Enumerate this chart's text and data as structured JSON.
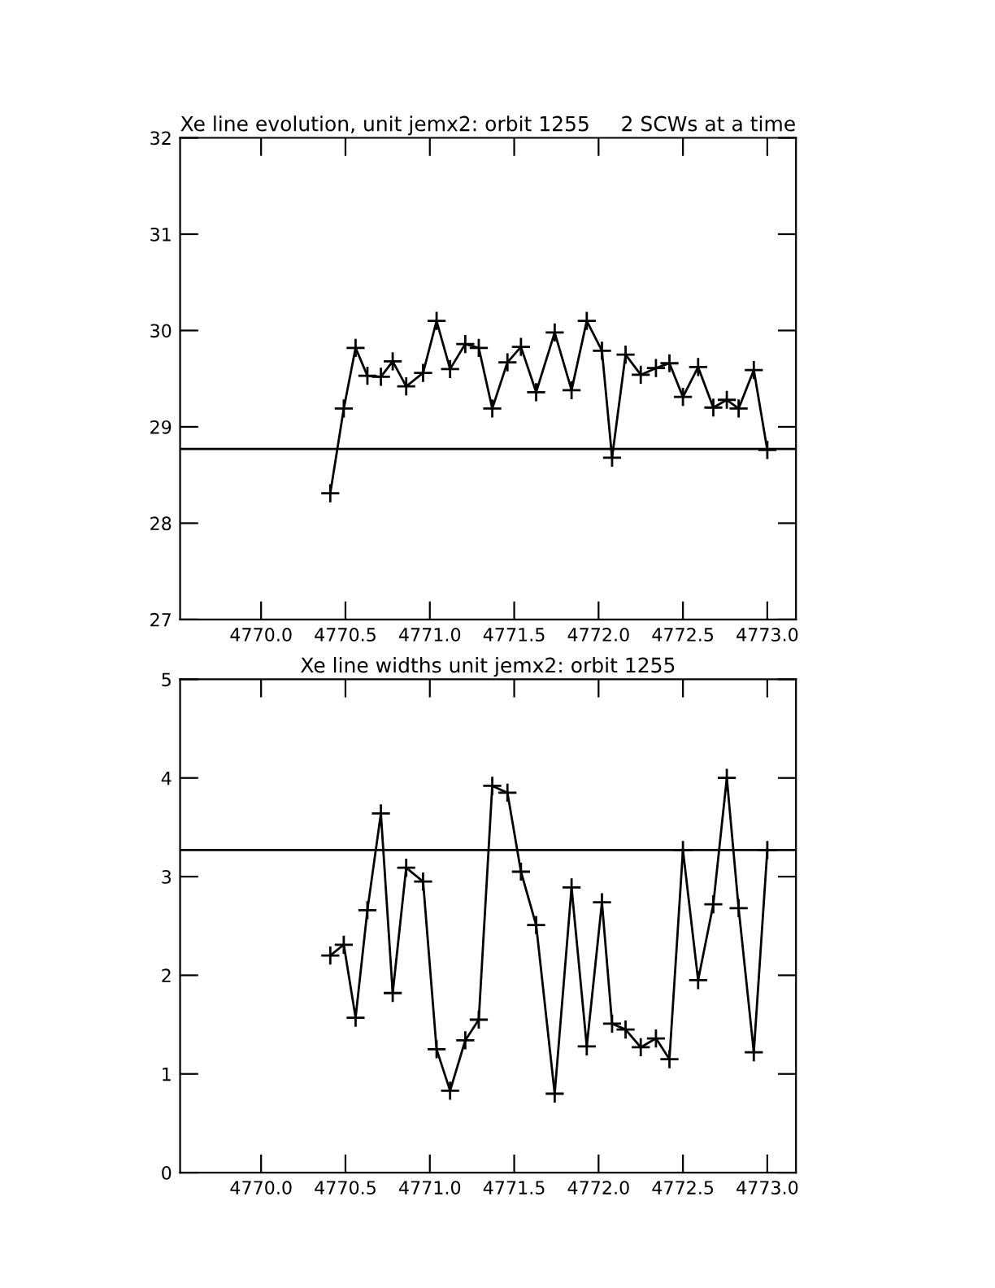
{
  "chart_data": [
    {
      "type": "line",
      "title": "Xe line evolution, unit jemx2: orbit 1255",
      "subtitle": "2 SCWs at a time",
      "marker": "cross",
      "line_style": "solid",
      "grid": false,
      "legend": false,
      "x": [
        4770.41,
        4770.49,
        4770.56,
        4770.63,
        4770.71,
        4770.78,
        4770.86,
        4770.96,
        4771.04,
        4771.12,
        4771.21,
        4771.29,
        4771.37,
        4771.46,
        4771.54,
        4771.63,
        4771.74,
        4771.84,
        4771.93,
        4772.02,
        4772.08,
        4772.16,
        4772.25,
        4772.34,
        4772.42,
        4772.5,
        4772.59,
        4772.68,
        4772.76,
        4772.83,
        4772.92,
        4773.0
      ],
      "series": [
        {
          "color": "#000000",
          "values": [
            28.31,
            29.19,
            29.82,
            29.53,
            29.52,
            29.68,
            29.42,
            29.56,
            30.1,
            29.6,
            29.86,
            29.82,
            29.19,
            29.67,
            29.83,
            29.36,
            29.98,
            29.38,
            30.1,
            29.79,
            28.68,
            29.75,
            29.54,
            29.61,
            29.66,
            29.31,
            29.62,
            29.2,
            29.28,
            29.19,
            29.59,
            28.76
          ]
        }
      ],
      "ref_lines": [
        {
          "axis": "y",
          "value": 28.77,
          "color": "#000000"
        }
      ],
      "xlim": [
        4769.52,
        4773.17
      ],
      "xticks": [
        {
          "value": 4770,
          "label": "4770.0"
        },
        {
          "value": 4770.5,
          "label": "4770.5"
        },
        {
          "value": 4771,
          "label": "4771.0"
        },
        {
          "value": 4771.5,
          "label": "4771.5"
        },
        {
          "value": 4772,
          "label": "4772.0"
        },
        {
          "value": 4772.5,
          "label": "4772.5"
        },
        {
          "value": 4773,
          "label": "4773.0"
        }
      ],
      "ylim": [
        27,
        32
      ],
      "yticks": [
        27,
        28,
        29,
        30,
        31,
        32
      ]
    },
    {
      "type": "line",
      "title": "Xe line widths unit jemx2: orbit 1255",
      "marker": "cross",
      "line_style": "solid",
      "grid": false,
      "legend": false,
      "x": [
        4770.41,
        4770.49,
        4770.56,
        4770.63,
        4770.71,
        4770.78,
        4770.86,
        4770.96,
        4771.04,
        4771.12,
        4771.21,
        4771.29,
        4771.37,
        4771.46,
        4771.54,
        4771.63,
        4771.74,
        4771.84,
        4771.93,
        4772.02,
        4772.08,
        4772.16,
        4772.25,
        4772.34,
        4772.42,
        4772.5,
        4772.59,
        4772.68,
        4772.76,
        4772.83,
        4772.92,
        4773.0
      ],
      "series": [
        {
          "color": "#000000",
          "values": [
            2.2,
            2.31,
            1.57,
            2.66,
            3.64,
            1.82,
            3.09,
            2.95,
            1.25,
            0.83,
            1.34,
            1.55,
            3.92,
            3.85,
            3.05,
            2.51,
            0.8,
            2.89,
            1.28,
            2.74,
            1.51,
            1.45,
            1.27,
            1.36,
            1.15,
            3.27,
            1.95,
            2.72,
            4.0,
            2.68,
            1.22,
            3.27
          ]
        }
      ],
      "ref_lines": [
        {
          "axis": "y",
          "value": 3.27,
          "color": "#000000"
        }
      ],
      "xlim": [
        4769.52,
        4773.17
      ],
      "xticks": [
        {
          "value": 4770,
          "label": "4770.0"
        },
        {
          "value": 4770.5,
          "label": "4770.5"
        },
        {
          "value": 4771,
          "label": "4771.0"
        },
        {
          "value": 4771.5,
          "label": "4771.5"
        },
        {
          "value": 4772,
          "label": "4772.0"
        },
        {
          "value": 4772.5,
          "label": "4772.5"
        },
        {
          "value": 4773,
          "label": "4773.0"
        }
      ],
      "ylim": [
        0,
        5
      ],
      "yticks": [
        0,
        1,
        2,
        3,
        4,
        5
      ]
    }
  ]
}
